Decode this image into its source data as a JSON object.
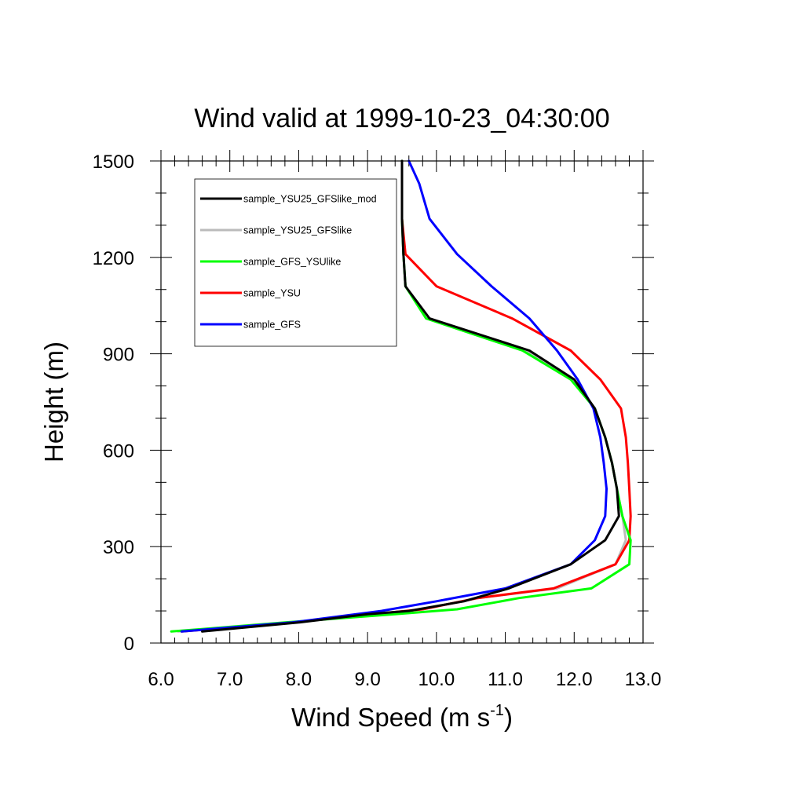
{
  "chart_data": {
    "type": "line",
    "title": "Wind valid at 1999-10-23_04:30:00",
    "xlabel": "Wind Speed (m s",
    "xlabel_sup": "-1",
    "xlabel_close": ")",
    "ylabel": "Height (m)",
    "xlim": [
      6.0,
      13.0
    ],
    "ylim": [
      0,
      1500
    ],
    "x_ticks": [
      "6.0",
      "7.0",
      "8.0",
      "9.0",
      "10.0",
      "11.0",
      "12.0",
      "13.0"
    ],
    "y_ticks": [
      "0",
      "300",
      "600",
      "900",
      "1200",
      "1500"
    ],
    "grid": false,
    "legend_position": "top-left",
    "series": [
      {
        "name": "sample_YSU25_GFSlike_mod",
        "color": "#000000",
        "points": [
          [
            6.6,
            36
          ],
          [
            8.0,
            64
          ],
          [
            9.0,
            90
          ],
          [
            9.6,
            100
          ],
          [
            10.4,
            130
          ],
          [
            11.05,
            170
          ],
          [
            11.95,
            245
          ],
          [
            12.45,
            320
          ],
          [
            12.65,
            395
          ],
          [
            12.62,
            480
          ],
          [
            12.55,
            560
          ],
          [
            12.45,
            640
          ],
          [
            12.3,
            730
          ],
          [
            12.0,
            820
          ],
          [
            11.35,
            910
          ],
          [
            9.9,
            1010
          ],
          [
            9.55,
            1110
          ],
          [
            9.52,
            1210
          ],
          [
            9.5,
            1320
          ],
          [
            9.5,
            1500
          ]
        ]
      },
      {
        "name": "sample_YSU25_GFSlike",
        "color": "#bbbbbb",
        "points": [
          [
            6.25,
            36
          ],
          [
            7.9,
            64
          ],
          [
            9.0,
            88
          ],
          [
            9.8,
            105
          ],
          [
            10.6,
            140
          ],
          [
            11.75,
            170
          ],
          [
            12.6,
            245
          ],
          [
            12.75,
            320
          ],
          [
            12.7,
            395
          ],
          [
            12.62,
            480
          ],
          [
            12.55,
            560
          ],
          [
            12.45,
            640
          ],
          [
            12.3,
            730
          ],
          [
            12.0,
            820
          ],
          [
            11.3,
            910
          ],
          [
            9.85,
            1010
          ],
          [
            9.55,
            1110
          ],
          [
            9.52,
            1210
          ],
          [
            9.5,
            1320
          ],
          [
            9.5,
            1500
          ]
        ]
      },
      {
        "name": "sample_GFS_YSUlike",
        "color": "#00ff00",
        "points": [
          [
            6.15,
            36
          ],
          [
            7.8,
            64
          ],
          [
            9.4,
            90
          ],
          [
            10.3,
            105
          ],
          [
            11.2,
            140
          ],
          [
            12.25,
            170
          ],
          [
            12.8,
            245
          ],
          [
            12.82,
            320
          ],
          [
            12.7,
            395
          ],
          [
            12.62,
            480
          ],
          [
            12.55,
            560
          ],
          [
            12.45,
            640
          ],
          [
            12.3,
            730
          ],
          [
            11.95,
            820
          ],
          [
            11.25,
            910
          ],
          [
            9.85,
            1010
          ],
          [
            9.55,
            1110
          ],
          [
            9.52,
            1210
          ],
          [
            9.5,
            1320
          ],
          [
            9.5,
            1500
          ]
        ]
      },
      {
        "name": "sample_YSU",
        "color": "#ff0000",
        "points": [
          [
            6.3,
            36
          ],
          [
            7.9,
            64
          ],
          [
            9.0,
            88
          ],
          [
            9.8,
            105
          ],
          [
            10.6,
            140
          ],
          [
            11.7,
            170
          ],
          [
            12.6,
            245
          ],
          [
            12.8,
            320
          ],
          [
            12.82,
            395
          ],
          [
            12.8,
            480
          ],
          [
            12.78,
            560
          ],
          [
            12.75,
            640
          ],
          [
            12.68,
            730
          ],
          [
            12.38,
            820
          ],
          [
            11.95,
            910
          ],
          [
            11.1,
            1010
          ],
          [
            10.0,
            1110
          ],
          [
            9.55,
            1210
          ],
          [
            9.5,
            1320
          ],
          [
            9.5,
            1500
          ]
        ]
      },
      {
        "name": "sample_GFS",
        "color": "#0000ff",
        "points": [
          [
            6.3,
            36
          ],
          [
            7.9,
            64
          ],
          [
            9.2,
            100
          ],
          [
            10.0,
            130
          ],
          [
            11.0,
            170
          ],
          [
            11.95,
            245
          ],
          [
            12.3,
            320
          ],
          [
            12.45,
            395
          ],
          [
            12.47,
            480
          ],
          [
            12.43,
            560
          ],
          [
            12.38,
            640
          ],
          [
            12.28,
            730
          ],
          [
            12.05,
            820
          ],
          [
            11.75,
            910
          ],
          [
            11.35,
            1010
          ],
          [
            10.8,
            1110
          ],
          [
            10.3,
            1210
          ],
          [
            9.9,
            1320
          ],
          [
            9.75,
            1430
          ],
          [
            9.6,
            1500
          ]
        ]
      }
    ]
  }
}
